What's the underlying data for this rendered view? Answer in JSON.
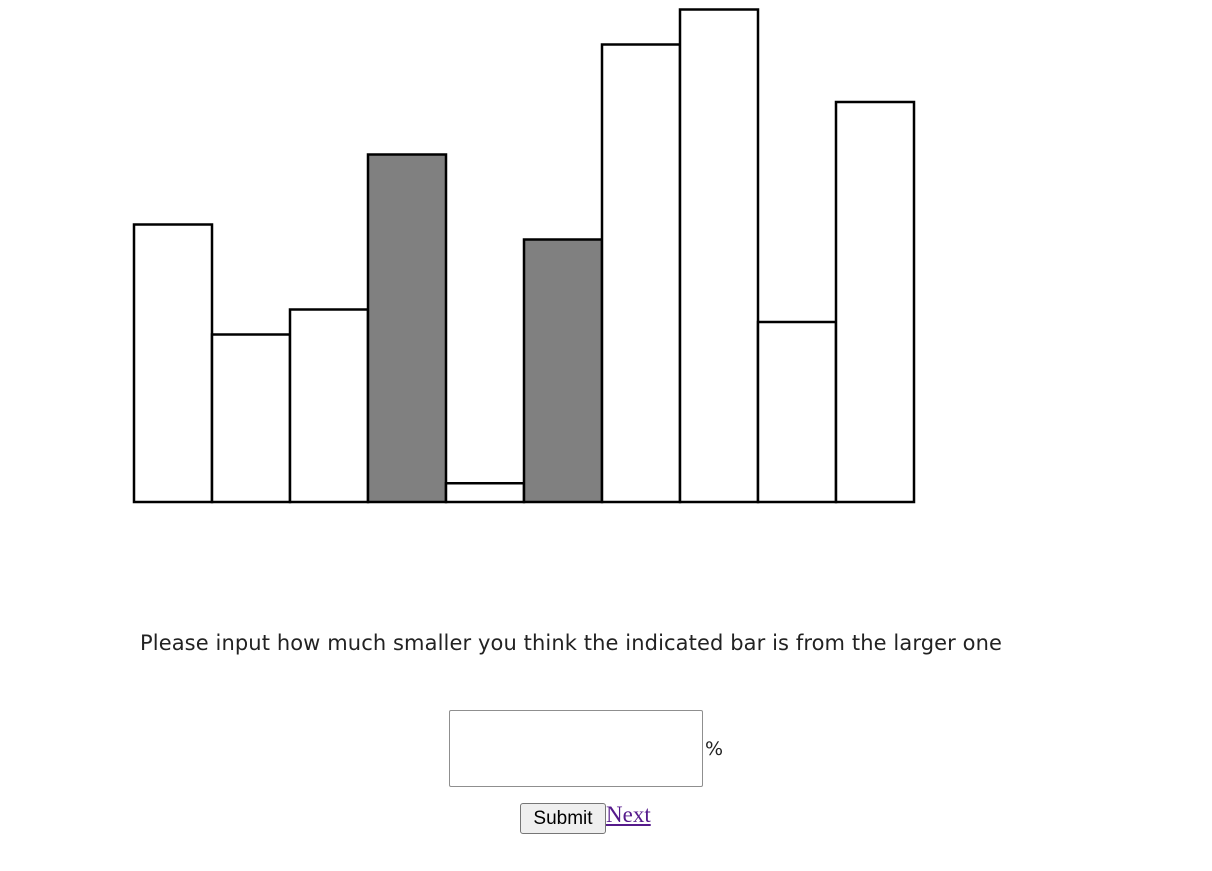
{
  "chart_data": {
    "type": "bar",
    "values": [
      22.2,
      13.4,
      15.4,
      27.8,
      1.5,
      21.0,
      36.6,
      39.4,
      14.4,
      32.0
    ],
    "highlighted_indices": [
      3,
      5
    ],
    "ylim": [
      0,
      40
    ],
    "bar_fill": "#ffffff",
    "highlight_fill": "#808080",
    "stroke_color": "#000000",
    "grid": false,
    "axes_shown": false
  },
  "question": {
    "text": "Please input how much smaller you think the indicated bar is from the larger one"
  },
  "answer": {
    "value": "",
    "unit": "%"
  },
  "buttons": {
    "submit_label": "Submit",
    "next_label": "Next"
  }
}
